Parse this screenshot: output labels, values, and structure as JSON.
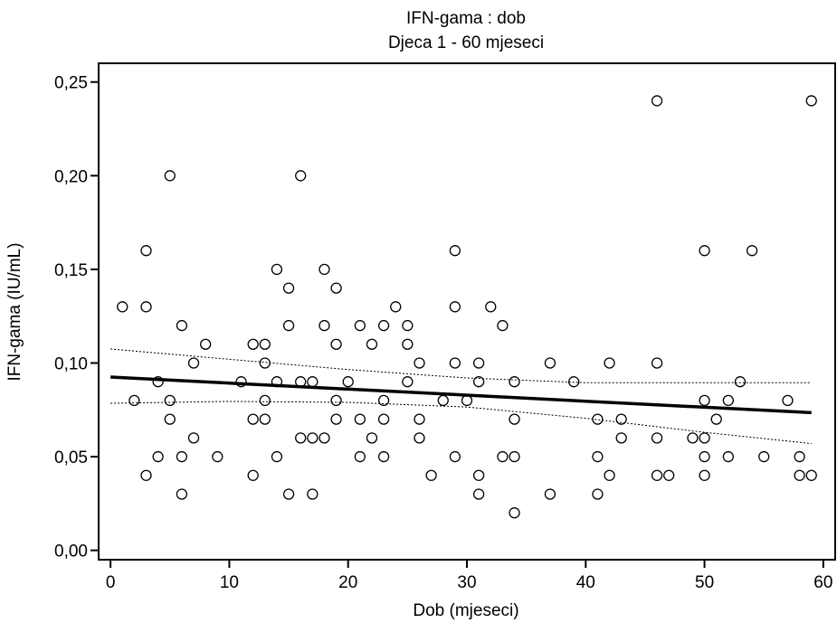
{
  "chart_data": {
    "type": "scatter",
    "title": "IFN-gama : dob",
    "subtitle": "Djeca 1 - 60 mjeseci",
    "xlabel": "Dob (mjeseci)",
    "ylabel": "IFN-gama (IU/mL)",
    "xlim": [
      -1,
      61
    ],
    "ylim": [
      -0.005,
      0.26
    ],
    "x_ticks": [
      0,
      10,
      20,
      30,
      40,
      50,
      60
    ],
    "x_tick_labels": [
      "0",
      "10",
      "20",
      "30",
      "40",
      "50",
      "60"
    ],
    "y_ticks": [
      0,
      0.05,
      0.1,
      0.15,
      0.2,
      0.25
    ],
    "y_tick_labels": [
      "0,00",
      "0,05",
      "0,10",
      "0,15",
      "0,20",
      "0,25"
    ],
    "grid": false,
    "points": [
      [
        1,
        0.13
      ],
      [
        2,
        0.08
      ],
      [
        3,
        0.16
      ],
      [
        3,
        0.13
      ],
      [
        3,
        0.04
      ],
      [
        4,
        0.09
      ],
      [
        4,
        0.05
      ],
      [
        5,
        0.2
      ],
      [
        5,
        0.08
      ],
      [
        5,
        0.07
      ],
      [
        6,
        0.12
      ],
      [
        6,
        0.05
      ],
      [
        6,
        0.03
      ],
      [
        7,
        0.1
      ],
      [
        7,
        0.06
      ],
      [
        8,
        0.11
      ],
      [
        9,
        0.05
      ],
      [
        11,
        0.09
      ],
      [
        12,
        0.11
      ],
      [
        12,
        0.07
      ],
      [
        12,
        0.04
      ],
      [
        13,
        0.11
      ],
      [
        13,
        0.1
      ],
      [
        13,
        0.08
      ],
      [
        13,
        0.07
      ],
      [
        14,
        0.15
      ],
      [
        14,
        0.09
      ],
      [
        14,
        0.05
      ],
      [
        15,
        0.14
      ],
      [
        15,
        0.12
      ],
      [
        15,
        0.03
      ],
      [
        16,
        0.2
      ],
      [
        16,
        0.09
      ],
      [
        16,
        0.06
      ],
      [
        17,
        0.09
      ],
      [
        17,
        0.06
      ],
      [
        17,
        0.03
      ],
      [
        18,
        0.15
      ],
      [
        18,
        0.12
      ],
      [
        18,
        0.06
      ],
      [
        19,
        0.14
      ],
      [
        19,
        0.11
      ],
      [
        19,
        0.08
      ],
      [
        19,
        0.07
      ],
      [
        20,
        0.09
      ],
      [
        21,
        0.12
      ],
      [
        21,
        0.07
      ],
      [
        21,
        0.05
      ],
      [
        22,
        0.11
      ],
      [
        22,
        0.06
      ],
      [
        23,
        0.12
      ],
      [
        23,
        0.08
      ],
      [
        23,
        0.07
      ],
      [
        23,
        0.05
      ],
      [
        24,
        0.13
      ],
      [
        25,
        0.12
      ],
      [
        25,
        0.11
      ],
      [
        25,
        0.09
      ],
      [
        26,
        0.1
      ],
      [
        26,
        0.07
      ],
      [
        26,
        0.06
      ],
      [
        27,
        0.04
      ],
      [
        28,
        0.08
      ],
      [
        29,
        0.16
      ],
      [
        29,
        0.13
      ],
      [
        29,
        0.1
      ],
      [
        29,
        0.05
      ],
      [
        30,
        0.08
      ],
      [
        31,
        0.1
      ],
      [
        31,
        0.09
      ],
      [
        31,
        0.04
      ],
      [
        31,
        0.03
      ],
      [
        32,
        0.13
      ],
      [
        33,
        0.12
      ],
      [
        33,
        0.05
      ],
      [
        34,
        0.09
      ],
      [
        34,
        0.07
      ],
      [
        34,
        0.05
      ],
      [
        34,
        0.02
      ],
      [
        37,
        0.1
      ],
      [
        37,
        0.03
      ],
      [
        39,
        0.09
      ],
      [
        41,
        0.07
      ],
      [
        41,
        0.05
      ],
      [
        41,
        0.03
      ],
      [
        42,
        0.1
      ],
      [
        42,
        0.04
      ],
      [
        43,
        0.07
      ],
      [
        43,
        0.06
      ],
      [
        46,
        0.24
      ],
      [
        46,
        0.1
      ],
      [
        46,
        0.06
      ],
      [
        46,
        0.04
      ],
      [
        47,
        0.04
      ],
      [
        49,
        0.06
      ],
      [
        50,
        0.16
      ],
      [
        50,
        0.08
      ],
      [
        50,
        0.06
      ],
      [
        50,
        0.05
      ],
      [
        50,
        0.04
      ],
      [
        51,
        0.07
      ],
      [
        52,
        0.08
      ],
      [
        52,
        0.05
      ],
      [
        53,
        0.09
      ],
      [
        54,
        0.16
      ],
      [
        55,
        0.05
      ],
      [
        57,
        0.08
      ],
      [
        58,
        0.05
      ],
      [
        58,
        0.04
      ],
      [
        59,
        0.24
      ],
      [
        59,
        0.04
      ]
    ],
    "regression_line": {
      "x": [
        0,
        59
      ],
      "y": [
        0.0925,
        0.0735
      ]
    },
    "ci_upper": {
      "x": [
        0,
        10,
        20,
        30,
        40,
        50,
        59
      ],
      "y": [
        0.1075,
        0.102,
        0.0965,
        0.092,
        0.0895,
        0.0895,
        0.0895
      ]
    },
    "ci_lower": {
      "x": [
        0,
        10,
        20,
        30,
        40,
        50,
        59
      ],
      "y": [
        0.0785,
        0.0795,
        0.079,
        0.0765,
        0.0705,
        0.063,
        0.057
      ]
    }
  }
}
